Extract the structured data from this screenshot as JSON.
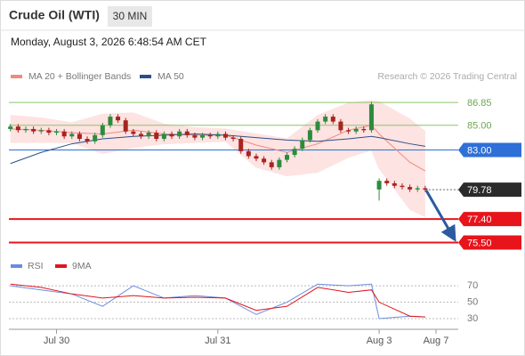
{
  "header": {
    "title": "Crude Oil (WTI)",
    "interval": "30 MIN",
    "timestamp": "Monday, August 3, 2026 6:48:54 AM CET",
    "credit": "Research © 2026 Trading Central"
  },
  "chart_data": [
    {
      "type": "candlestick",
      "xlim": [
        -0.2,
        58.3
      ],
      "ylim": [
        74.6,
        88.3
      ],
      "x": [
        0,
        1,
        2,
        3,
        4,
        5,
        6,
        7,
        8,
        9,
        10,
        11,
        12,
        13,
        14,
        15,
        16,
        17,
        18,
        19,
        20,
        21,
        22,
        23,
        24,
        25,
        26,
        27,
        28,
        29,
        30,
        31,
        32,
        33,
        34,
        35,
        36,
        37,
        38,
        39,
        40,
        41,
        42,
        43,
        44,
        45,
        46,
        47,
        48,
        49,
        50,
        51,
        52,
        53,
        54
      ],
      "open": [
        84.7,
        84.9,
        84.6,
        84.7,
        84.5,
        84.6,
        84.4,
        84.5,
        84.1,
        84.3,
        83.9,
        83.7,
        84.2,
        85.0,
        85.7,
        85.4,
        84.5,
        84.3,
        84.1,
        84.4,
        83.9,
        84.3,
        84.1,
        84.5,
        84.2,
        84.0,
        84.2,
        84.1,
        84.3,
        84.0,
        83.9,
        82.9,
        82.5,
        82.3,
        82.0,
        81.6,
        82.2,
        82.6,
        83.1,
        83.8,
        84.6,
        85.3,
        85.7,
        85.3,
        84.6,
        84.5,
        84.7,
        84.6,
        79.8,
        80.5,
        80.3,
        80.1,
        80.0,
        79.8,
        79.9
      ],
      "high": [
        85.1,
        85.1,
        84.9,
        84.9,
        84.8,
        84.8,
        84.7,
        84.7,
        84.5,
        84.5,
        84.1,
        84.4,
        85.2,
        85.9,
        85.9,
        85.6,
        84.7,
        84.5,
        84.6,
        84.6,
        84.5,
        84.5,
        84.7,
        84.7,
        84.4,
        84.4,
        84.4,
        84.5,
        84.5,
        84.2,
        84.1,
        83.1,
        82.7,
        82.5,
        82.2,
        82.4,
        82.8,
        83.3,
        84.0,
        84.8,
        85.5,
        85.9,
        85.9,
        85.5,
        84.8,
        84.9,
        84.9,
        86.9,
        80.7,
        80.7,
        80.5,
        80.3,
        80.2,
        80.1,
        80.1
      ],
      "low": [
        84.5,
        84.4,
        84.4,
        84.3,
        84.3,
        84.2,
        84.2,
        83.9,
        83.9,
        83.7,
        83.5,
        83.5,
        84.0,
        84.8,
        85.2,
        84.3,
        84.1,
        83.9,
        83.9,
        83.7,
        83.7,
        83.9,
        83.9,
        84.0,
        83.8,
        83.8,
        83.9,
        83.9,
        83.8,
        83.7,
        82.7,
        82.3,
        82.1,
        81.8,
        81.4,
        81.4,
        82.0,
        82.4,
        82.9,
        83.6,
        84.4,
        85.1,
        85.1,
        84.4,
        84.3,
        84.3,
        84.4,
        84.4,
        78.9,
        80.1,
        79.9,
        79.8,
        79.6,
        79.6,
        79.6
      ],
      "close": [
        84.9,
        84.6,
        84.7,
        84.5,
        84.6,
        84.4,
        84.5,
        84.1,
        84.3,
        83.9,
        83.7,
        84.2,
        85.0,
        85.7,
        85.4,
        84.5,
        84.3,
        84.1,
        84.4,
        83.9,
        84.3,
        84.1,
        84.5,
        84.2,
        84.0,
        84.2,
        84.1,
        84.3,
        84.0,
        83.9,
        82.9,
        82.5,
        82.3,
        82.0,
        81.6,
        82.2,
        82.6,
        83.1,
        83.8,
        84.6,
        85.3,
        85.7,
        85.3,
        84.6,
        84.5,
        84.7,
        84.6,
        86.7,
        80.5,
        80.3,
        80.1,
        80.0,
        79.8,
        79.9,
        79.78
      ],
      "up_color": "#2e8b3e",
      "down_color": "#a8241f",
      "overlays": [
        {
          "name": "MA 20 + Bollinger Bands",
          "color": "#f08a80",
          "band_color": "#fde3e1",
          "x": [
            0,
            4,
            8,
            12,
            16,
            20,
            24,
            28,
            32,
            36,
            40,
            44,
            47,
            48,
            52,
            54
          ],
          "values": [
            84.7,
            84.6,
            84.4,
            84.3,
            84.6,
            84.3,
            84.2,
            84.2,
            83.4,
            82.8,
            83.5,
            84.6,
            85.0,
            84.3,
            82.0,
            81.3
          ],
          "upper": [
            85.8,
            85.6,
            85.2,
            85.9,
            86.0,
            85.1,
            84.8,
            84.7,
            84.3,
            83.9,
            85.8,
            86.8,
            87.0,
            86.9,
            85.5,
            84.5
          ],
          "lower": [
            83.6,
            83.6,
            83.6,
            82.7,
            83.2,
            83.5,
            83.6,
            83.7,
            81.6,
            80.9,
            81.2,
            82.4,
            83.0,
            81.5,
            78.2,
            77.6
          ]
        },
        {
          "name": "MA 50",
          "color": "#2c4f8c",
          "x": [
            0,
            4,
            8,
            12,
            16,
            20,
            24,
            28,
            32,
            36,
            40,
            44,
            47,
            48,
            52,
            54
          ],
          "values": [
            81.9,
            82.8,
            83.5,
            83.9,
            84.1,
            84.2,
            84.3,
            84.2,
            84.0,
            83.8,
            83.7,
            83.9,
            84.1,
            84.0,
            83.5,
            83.3
          ]
        }
      ],
      "levels": [
        {
          "value": 86.85,
          "label": "86.85",
          "color": "#8cc46c",
          "style": "solid",
          "box": false
        },
        {
          "value": 85,
          "label": "85.00",
          "color": "#8cc46c",
          "style": "solid",
          "box": false
        },
        {
          "value": 83,
          "label": "83.00",
          "color": "#2f6fd8",
          "style": "solid",
          "box": true
        },
        {
          "value": 79.78,
          "label": "79.78",
          "color": "#2b2b2b",
          "style": "dotted",
          "box": true
        },
        {
          "value": 77.4,
          "label": "77.40",
          "color": "#e8141b",
          "style": "solid",
          "box": true
        },
        {
          "value": 75.5,
          "label": "75.50",
          "color": "#e8141b",
          "style": "solid",
          "box": true
        }
      ]
    },
    {
      "type": "line",
      "xlim": [
        -0.2,
        58.3
      ],
      "ylim": [
        17,
        82
      ],
      "yticks": [
        30,
        50,
        70
      ],
      "grid": true,
      "xticks": [
        {
          "value": 6,
          "label": "Jul 30"
        },
        {
          "value": 27,
          "label": "Jul 31"
        },
        {
          "value": 48,
          "label": "Aug 3"
        },
        {
          "value": 55.4,
          "label": "Aug 7"
        }
      ],
      "series": [
        {
          "name": "RSI",
          "color": "#6b8be0",
          "x": [
            0,
            4,
            8,
            12,
            16,
            20,
            24,
            28,
            32,
            36,
            40,
            44,
            47,
            48,
            52,
            54
          ],
          "values": [
            70,
            65,
            60,
            45,
            70,
            55,
            58,
            55,
            35,
            50,
            72,
            70,
            72,
            30,
            33,
            32
          ]
        },
        {
          "name": "9MA",
          "color": "#e0141b",
          "x": [
            0,
            4,
            8,
            12,
            16,
            20,
            24,
            28,
            32,
            36,
            40,
            44,
            47,
            48,
            52,
            54
          ],
          "values": [
            72,
            68,
            60,
            55,
            58,
            55,
            56,
            55,
            40,
            45,
            68,
            62,
            65,
            50,
            33,
            32
          ]
        }
      ]
    }
  ]
}
